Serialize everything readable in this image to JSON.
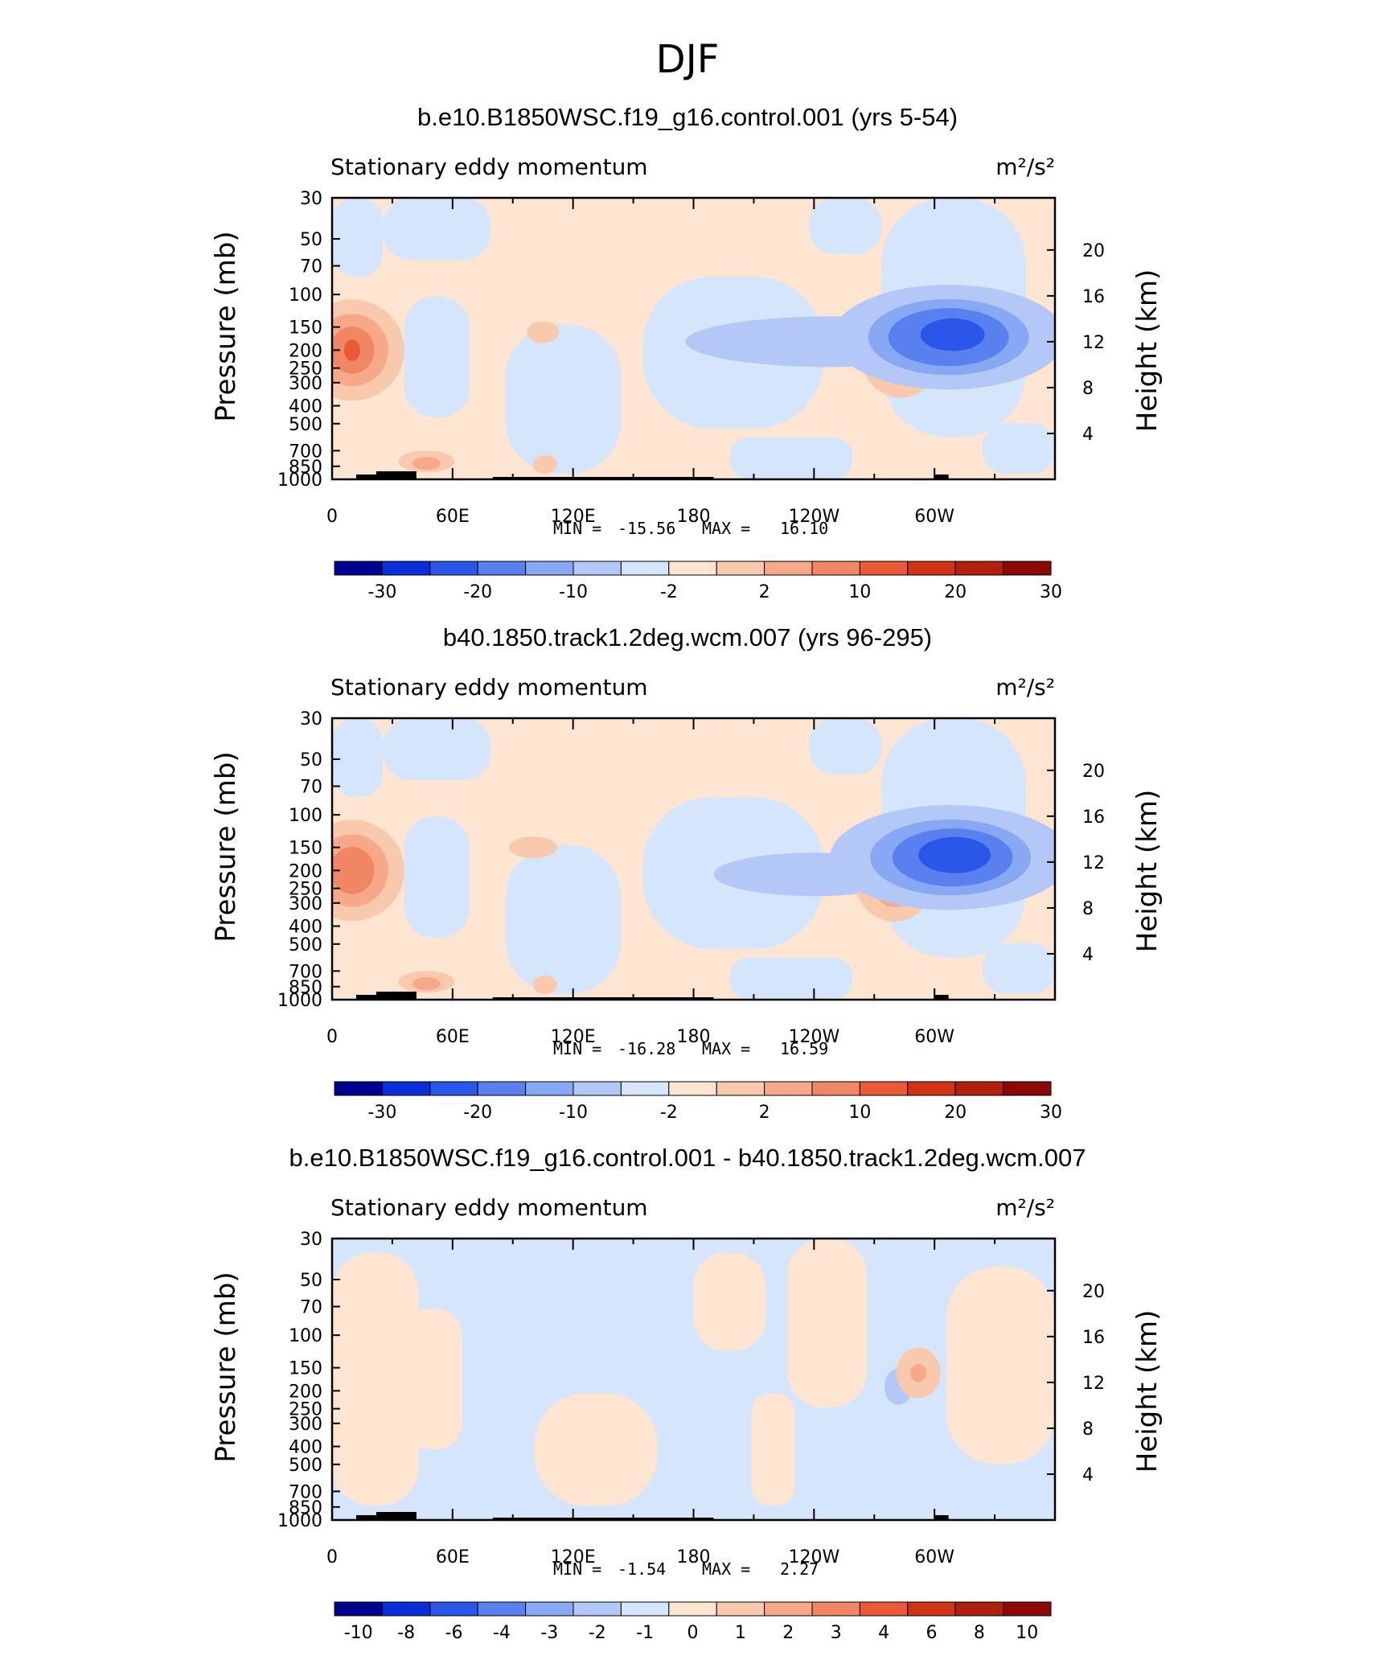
{
  "figure_title": "DJF",
  "colors": {
    "n6": "#00008f",
    "n5": "#0a2ed9",
    "n4": "#2b57e8",
    "n3": "#5a80ef",
    "n2": "#87a8f3",
    "n1": "#b3c8f6",
    "n0": "#d5e5fb",
    "p0": "#fde5d2",
    "p1": "#f9c9ad",
    "p2": "#f6a889",
    "p3": "#f18664",
    "p4": "#ea5a36",
    "p5": "#cf3414",
    "p6": "#b0200d",
    "p7": "#8c0a05",
    "topo": "#000000"
  },
  "chart_data": [
    {
      "type": "contour",
      "title": "b.e10.B1850WSC.f19_g16.control.001 (yrs 5-54)",
      "variable": "Stationary eddy momentum",
      "units": "m²/s²",
      "ylabel": "Pressure (mb)",
      "ylabel_right": "Height (km)",
      "ylim": [
        1000,
        30
      ],
      "yticks": [
        "30",
        "50",
        "70",
        "100",
        "150",
        "200",
        "250",
        "300",
        "400",
        "500",
        "700",
        "850",
        "1000"
      ],
      "yticks_right": [
        "20",
        "16",
        "12",
        "8",
        "4"
      ],
      "xticks": [
        "0",
        "60E",
        "120E",
        "180",
        "120W",
        "60W"
      ],
      "min_label": "MIN =",
      "min": "-15.56",
      "max_label": "MAX =",
      "max": "16.10",
      "colorbar_ticks": [
        "-30",
        "-20",
        "-10",
        "-2",
        "2",
        "10",
        "20",
        "30"
      ],
      "colorbar_colors": [
        "n6",
        "n5",
        "n4",
        "n3",
        "n2",
        "n1",
        "n0",
        "p0",
        "p1",
        "p2",
        "p3",
        "p4",
        "p5",
        "p6",
        "p7"
      ],
      "features": [
        {
          "level": "p1",
          "lon": 10,
          "p": 200,
          "w": 26,
          "h": 140
        },
        {
          "level": "p2",
          "lon": 10,
          "p": 200,
          "w": 18,
          "h": 100
        },
        {
          "level": "p3",
          "lon": 10,
          "p": 200,
          "w": 11,
          "h": 65
        },
        {
          "level": "p4",
          "lon": 10,
          "p": 200,
          "w": 4,
          "h": 30
        },
        {
          "level": "n1",
          "lon": 248,
          "p": 180,
          "w": 72,
          "h": 70
        },
        {
          "level": "p1",
          "lon": 283,
          "p": 210,
          "w": 20,
          "h": 120
        },
        {
          "level": "p2",
          "lon": 283,
          "p": 210,
          "w": 12,
          "h": 80
        },
        {
          "level": "n1",
          "lon": 307,
          "p": 170,
          "w": 58,
          "h": 145
        },
        {
          "level": "n2",
          "lon": 307,
          "p": 170,
          "w": 40,
          "h": 105
        },
        {
          "level": "n3",
          "lon": 307,
          "p": 170,
          "w": 30,
          "h": 80
        },
        {
          "level": "n4",
          "lon": 309,
          "p": 165,
          "w": 16,
          "h": 45
        },
        {
          "level": "p1",
          "lon": 47,
          "p": 800,
          "w": 14,
          "h": 30
        },
        {
          "level": "p2",
          "lon": 47,
          "p": 820,
          "w": 7,
          "h": 18
        },
        {
          "level": "p1",
          "lon": 105,
          "p": 160,
          "w": 8,
          "h": 30
        },
        {
          "level": "p1",
          "lon": 106,
          "p": 830,
          "w": 6,
          "h": 26
        }
      ]
    },
    {
      "type": "contour",
      "title": "b40.1850.track1.2deg.wcm.007 (yrs 96-295)",
      "variable": "Stationary eddy momentum",
      "units": "m²/s²",
      "ylabel": "Pressure (mb)",
      "ylabel_right": "Height (km)",
      "ylim": [
        1000,
        30
      ],
      "yticks": [
        "30",
        "50",
        "70",
        "100",
        "150",
        "200",
        "250",
        "300",
        "400",
        "500",
        "700",
        "850",
        "1000"
      ],
      "yticks_right": [
        "20",
        "16",
        "12",
        "8",
        "4"
      ],
      "xticks": [
        "0",
        "60E",
        "120E",
        "180",
        "120W",
        "60W"
      ],
      "min_label": "MIN =",
      "min": "-16.28",
      "max_label": "MAX =",
      "max": "16.59",
      "colorbar_ticks": [
        "-30",
        "-20",
        "-10",
        "-2",
        "2",
        "10",
        "20",
        "30"
      ],
      "colorbar_colors": [
        "n6",
        "n5",
        "n4",
        "n3",
        "n2",
        "n1",
        "n0",
        "p0",
        "p1",
        "p2",
        "p3",
        "p4",
        "p5",
        "p6",
        "p7"
      ],
      "features": [
        {
          "level": "p1",
          "lon": 10,
          "p": 200,
          "w": 26,
          "h": 140
        },
        {
          "level": "p2",
          "lon": 10,
          "p": 200,
          "w": 18,
          "h": 100
        },
        {
          "level": "p3",
          "lon": 10,
          "p": 200,
          "w": 11,
          "h": 65
        },
        {
          "level": "n1",
          "lon": 240,
          "p": 210,
          "w": 50,
          "h": 60
        },
        {
          "level": "p1",
          "lon": 280,
          "p": 220,
          "w": 20,
          "h": 120
        },
        {
          "level": "p2",
          "lon": 280,
          "p": 220,
          "w": 12,
          "h": 80
        },
        {
          "level": "n1",
          "lon": 308,
          "p": 170,
          "w": 60,
          "h": 145
        },
        {
          "level": "n2",
          "lon": 308,
          "p": 170,
          "w": 40,
          "h": 105
        },
        {
          "level": "n3",
          "lon": 309,
          "p": 170,
          "w": 30,
          "h": 80
        },
        {
          "level": "n4",
          "lon": 310,
          "p": 165,
          "w": 18,
          "h": 50
        },
        {
          "level": "p1",
          "lon": 100,
          "p": 150,
          "w": 12,
          "h": 30
        },
        {
          "level": "p1",
          "lon": 47,
          "p": 800,
          "w": 14,
          "h": 30
        },
        {
          "level": "p2",
          "lon": 47,
          "p": 820,
          "w": 7,
          "h": 18
        },
        {
          "level": "p1",
          "lon": 106,
          "p": 830,
          "w": 6,
          "h": 26
        }
      ]
    },
    {
      "type": "contour",
      "title": "b.e10.B1850WSC.f19_g16.control.001 - b40.1850.track1.2deg.wcm.007",
      "variable": "Stationary eddy momentum",
      "units": "m²/s²",
      "ylabel": "Pressure (mb)",
      "ylabel_right": "Height (km)",
      "ylim": [
        1000,
        30
      ],
      "yticks": [
        "30",
        "50",
        "70",
        "100",
        "150",
        "200",
        "250",
        "300",
        "400",
        "500",
        "700",
        "850",
        "1000"
      ],
      "yticks_right": [
        "20",
        "16",
        "12",
        "8",
        "4"
      ],
      "xticks": [
        "0",
        "60E",
        "120E",
        "180",
        "120W",
        "60W"
      ],
      "min_label": "MIN =",
      "min": "-1.54",
      "max_label": "MAX =",
      "max": "2.27",
      "colorbar_ticks": [
        "-10",
        "-8",
        "-6",
        "-4",
        "-3",
        "-2",
        "-1",
        "0",
        "1",
        "2",
        "3",
        "4",
        "6",
        "8",
        "10"
      ],
      "colorbar_colors": [
        "n6",
        "n5",
        "n4",
        "n3",
        "n2",
        "n1",
        "n0",
        "p0",
        "p1",
        "p2",
        "p3",
        "p4",
        "p5",
        "p6",
        "p7"
      ],
      "features": [
        {
          "level": "n1",
          "lon": 282,
          "p": 190,
          "w": 7,
          "h": 50
        },
        {
          "level": "p1",
          "lon": 292,
          "p": 160,
          "w": 11,
          "h": 70
        },
        {
          "level": "p2",
          "lon": 292,
          "p": 160,
          "w": 4,
          "h": 25
        }
      ]
    }
  ]
}
